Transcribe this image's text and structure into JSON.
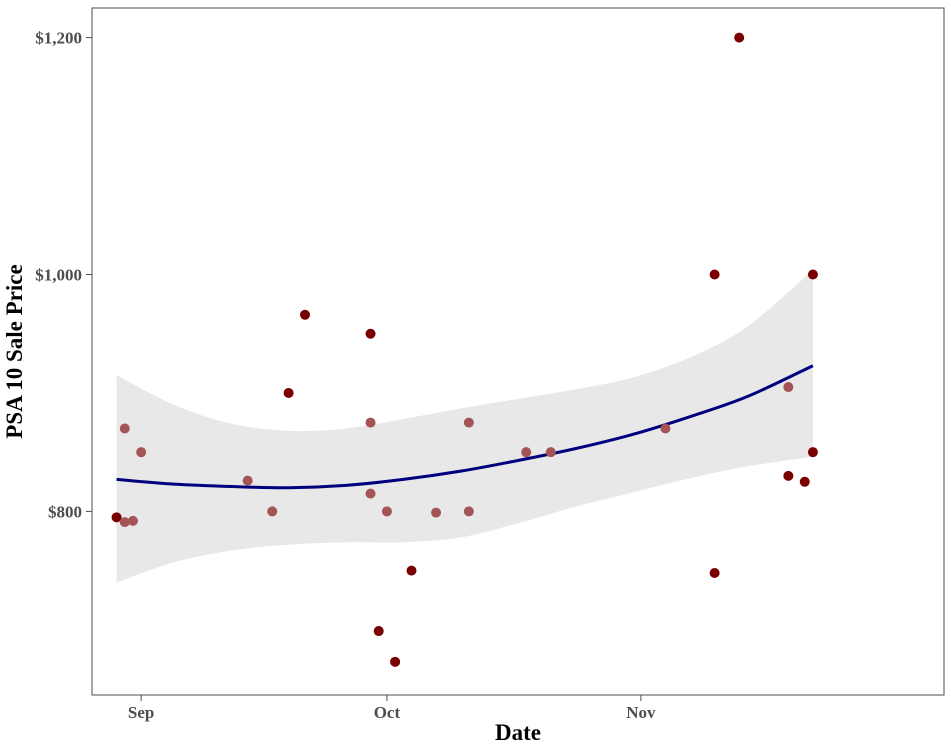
{
  "chart_data": {
    "type": "scatter",
    "title": "",
    "xlabel": "Date",
    "ylabel": "PSA 10 Sale Price",
    "x_ticks": [
      {
        "date": "2021-09-01",
        "label": "Sep"
      },
      {
        "date": "2021-10-01",
        "label": "Oct"
      },
      {
        "date": "2021-11-01",
        "label": "Nov"
      }
    ],
    "y_ticks": [
      {
        "value": 800,
        "label": "$800"
      },
      {
        "value": 1000,
        "label": "$1,000"
      },
      {
        "value": 1200,
        "label": "$1,200"
      }
    ],
    "xlim": [
      "2021-08-26",
      "2021-12-08"
    ],
    "ylim": [
      645,
      1225
    ],
    "grid": false,
    "legend": "none",
    "colors": {
      "point_dark": "#7a0000",
      "point_light": "#a35555",
      "smooth_line": "#00007f",
      "confidence_band": "#e8e8e8",
      "axis": "#4d4d4d"
    },
    "points": [
      {
        "date": "2021-08-29",
        "y": 795,
        "shade": "dark"
      },
      {
        "date": "2021-08-30",
        "y": 791,
        "shade": "light"
      },
      {
        "date": "2021-08-30",
        "y": 870,
        "shade": "light"
      },
      {
        "date": "2021-08-31",
        "y": 792,
        "shade": "light"
      },
      {
        "date": "2021-09-01",
        "y": 850,
        "shade": "light"
      },
      {
        "date": "2021-09-14",
        "y": 826,
        "shade": "light"
      },
      {
        "date": "2021-09-17",
        "y": 800,
        "shade": "light"
      },
      {
        "date": "2021-09-19",
        "y": 900,
        "shade": "dark"
      },
      {
        "date": "2021-09-21",
        "y": 966,
        "shade": "dark"
      },
      {
        "date": "2021-09-29",
        "y": 950,
        "shade": "dark"
      },
      {
        "date": "2021-09-29",
        "y": 875,
        "shade": "light"
      },
      {
        "date": "2021-09-29",
        "y": 815,
        "shade": "light"
      },
      {
        "date": "2021-09-30",
        "y": 699,
        "shade": "dark"
      },
      {
        "date": "2021-10-01",
        "y": 800,
        "shade": "light"
      },
      {
        "date": "2021-10-02",
        "y": 673,
        "shade": "dark"
      },
      {
        "date": "2021-10-04",
        "y": 750,
        "shade": "dark"
      },
      {
        "date": "2021-10-07",
        "y": 799,
        "shade": "light"
      },
      {
        "date": "2021-10-11",
        "y": 875,
        "shade": "light"
      },
      {
        "date": "2021-10-11",
        "y": 800,
        "shade": "light"
      },
      {
        "date": "2021-10-18",
        "y": 850,
        "shade": "light"
      },
      {
        "date": "2021-10-21",
        "y": 850,
        "shade": "light"
      },
      {
        "date": "2021-11-04",
        "y": 870,
        "shade": "light"
      },
      {
        "date": "2021-11-10",
        "y": 1000,
        "shade": "dark"
      },
      {
        "date": "2021-11-10",
        "y": 748,
        "shade": "dark"
      },
      {
        "date": "2021-11-13",
        "y": 1200,
        "shade": "dark"
      },
      {
        "date": "2021-11-19",
        "y": 905,
        "shade": "light"
      },
      {
        "date": "2021-11-19",
        "y": 830,
        "shade": "dark"
      },
      {
        "date": "2021-11-21",
        "y": 825,
        "shade": "dark"
      },
      {
        "date": "2021-11-22",
        "y": 1000,
        "shade": "dark"
      },
      {
        "date": "2021-11-22",
        "y": 850,
        "shade": "dark"
      }
    ],
    "smooth": {
      "method": "loess",
      "curve": [
        {
          "date": "2021-08-29",
          "y": 827,
          "lower": 740,
          "upper": 915
        },
        {
          "date": "2021-09-05",
          "y": 823,
          "lower": 757,
          "upper": 890
        },
        {
          "date": "2021-09-12",
          "y": 821,
          "lower": 767,
          "upper": 874
        },
        {
          "date": "2021-09-19",
          "y": 820,
          "lower": 772,
          "upper": 868
        },
        {
          "date": "2021-09-26",
          "y": 822,
          "lower": 774,
          "upper": 870
        },
        {
          "date": "2021-10-03",
          "y": 827,
          "lower": 774,
          "upper": 878
        },
        {
          "date": "2021-10-10",
          "y": 834,
          "lower": 778,
          "upper": 887
        },
        {
          "date": "2021-10-17",
          "y": 843,
          "lower": 790,
          "upper": 895
        },
        {
          "date": "2021-10-24",
          "y": 853,
          "lower": 804,
          "upper": 903
        },
        {
          "date": "2021-10-31",
          "y": 865,
          "lower": 816,
          "upper": 913
        },
        {
          "date": "2021-11-07",
          "y": 880,
          "lower": 828,
          "upper": 930
        },
        {
          "date": "2021-11-14",
          "y": 897,
          "lower": 838,
          "upper": 956
        },
        {
          "date": "2021-11-22",
          "y": 923,
          "lower": 846,
          "upper": 1004
        }
      ]
    }
  }
}
